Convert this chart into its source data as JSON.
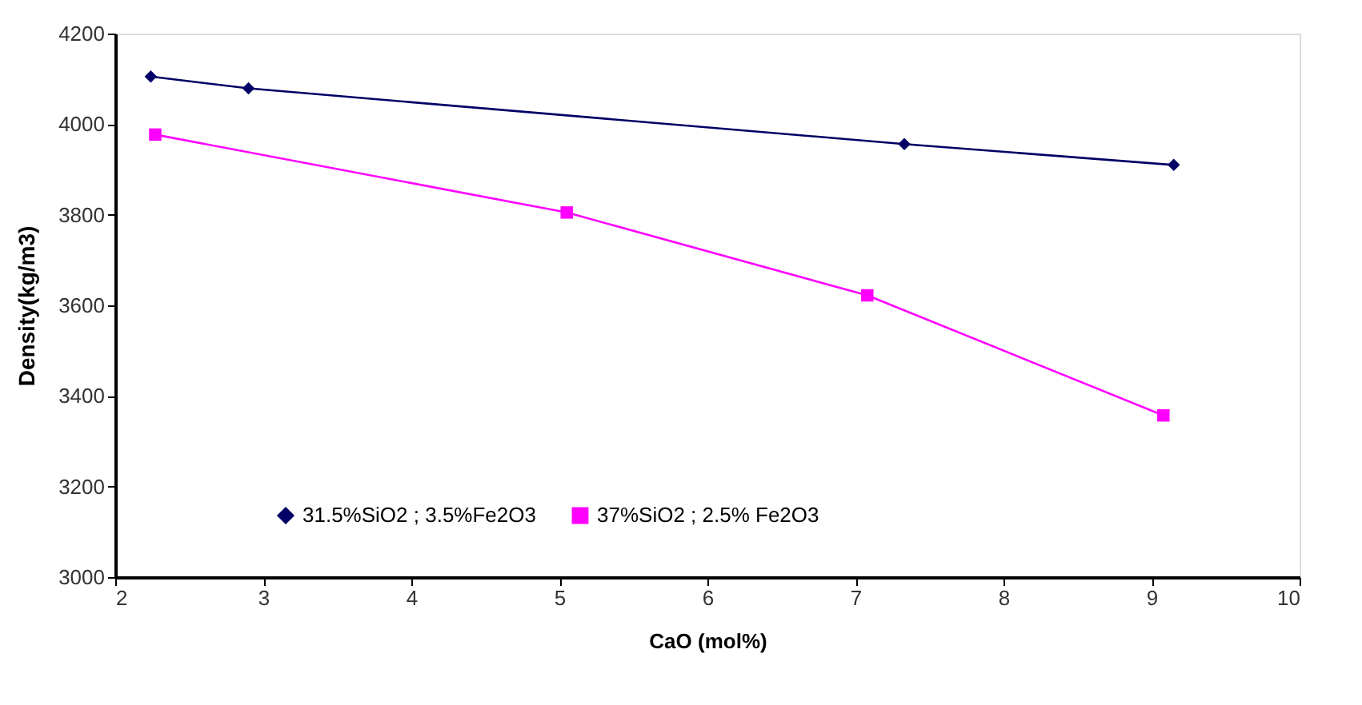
{
  "chart_data": {
    "type": "line",
    "xlabel": "CaO (mol%)",
    "ylabel": "Density(kg/m3)",
    "xlim": [
      2,
      10
    ],
    "xticks": [
      2,
      3,
      4,
      5,
      6,
      7,
      8,
      9,
      10
    ],
    "ylim": [
      3000,
      4200
    ],
    "yticks": [
      3000,
      3200,
      3400,
      3600,
      3800,
      4000,
      4200
    ],
    "grid": false,
    "legend": "bottom",
    "line_style": "solid",
    "series": [
      {
        "name": "31.5%SiO2 ; 3.5%Fe2O3",
        "color": "#000066",
        "marker": "diamond",
        "x": [
          2.24,
          2.9,
          7.33,
          9.15
        ],
        "values": [
          4105,
          4079,
          3956,
          3910
        ]
      },
      {
        "name": "37%SiO2 ; 2.5% Fe2O3",
        "color": "#ff00ff",
        "marker": "square",
        "x": [
          2.27,
          5.05,
          7.08,
          9.08
        ],
        "values": [
          3977,
          3805,
          3622,
          3357
        ]
      }
    ]
  }
}
